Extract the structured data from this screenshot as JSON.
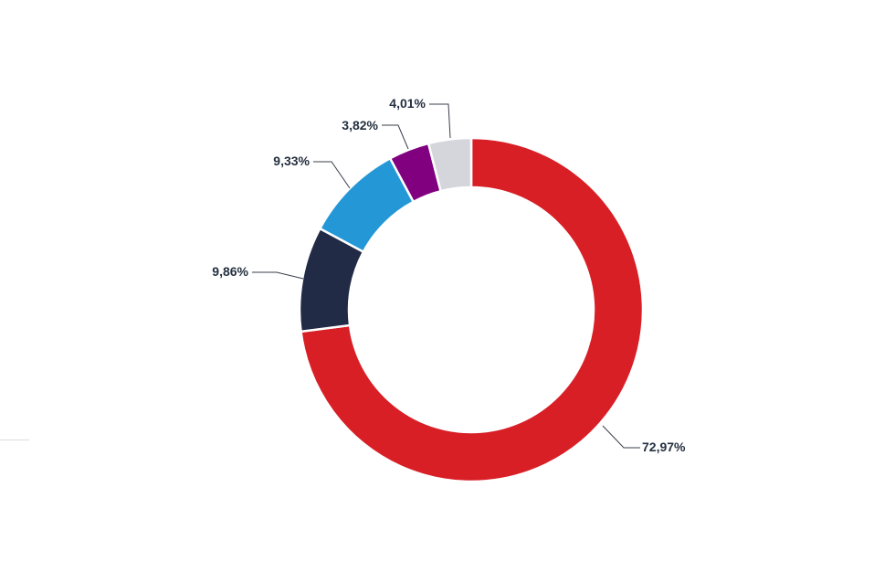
{
  "chart_data": {
    "type": "pie",
    "variant": "donut",
    "title": "",
    "slices": [
      {
        "label": "72,97%",
        "value": 72.97,
        "color": "#d81f26"
      },
      {
        "label": "9,86%",
        "value": 9.86,
        "color": "#222b45"
      },
      {
        "label": "9,33%",
        "value": 9.33,
        "color": "#2497d6"
      },
      {
        "label": "3,82%",
        "value": 3.82,
        "color": "#800080"
      },
      {
        "label": "4,01%",
        "value": 4.01,
        "color": "#d4d6dc"
      }
    ],
    "start": "12 o'clock",
    "direction": "clockwise",
    "data_labels": "outside with leader lines",
    "legend": "none"
  }
}
